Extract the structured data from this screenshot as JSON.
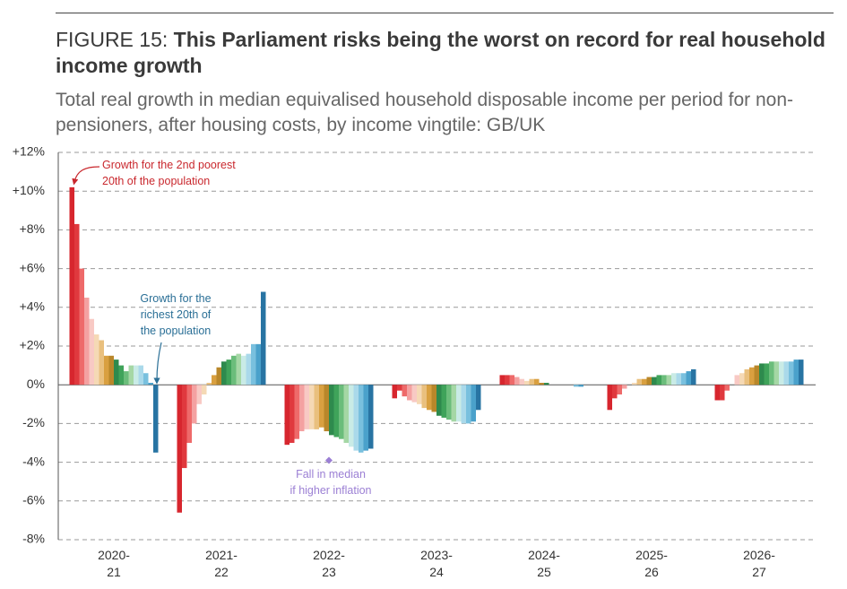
{
  "chart_data": {
    "type": "bar",
    "title_prefix": "FIGURE 15:",
    "title": "This Parliament risks being the worst on record for real household income growth",
    "subtitle": "Total real growth in median equivalised household disposable income per period for non-pensioners, after housing costs, by income vingtile: GB/UK",
    "categories": [
      [
        "2020-",
        "21"
      ],
      [
        "2021-",
        "22"
      ],
      [
        "2022-",
        "23"
      ],
      [
        "2023-",
        "24"
      ],
      [
        "2024-",
        "25"
      ],
      [
        "2025-",
        "26"
      ],
      [
        "2026-",
        "27"
      ]
    ],
    "ylim": [
      -8,
      12
    ],
    "yticks": [
      {
        "value": -8,
        "label": "-8%"
      },
      {
        "value": -6,
        "label": "-6%"
      },
      {
        "value": -4,
        "label": "-4%"
      },
      {
        "value": -2,
        "label": "-2%"
      },
      {
        "value": 0,
        "label": "0%"
      },
      {
        "value": 2,
        "label": "+2%"
      },
      {
        "value": 4,
        "label": "+4%"
      },
      {
        "value": 6,
        "label": "+6%"
      },
      {
        "value": 8,
        "label": "+8%"
      },
      {
        "value": 10,
        "label": "+10%"
      },
      {
        "value": 12,
        "label": "+12%"
      }
    ],
    "grid": true,
    "series": [
      {
        "color": "#d7262e",
        "values": [
          10.2,
          -6.6,
          -3.1,
          -0.7,
          0.5,
          -1.3,
          -0.8
        ]
      },
      {
        "color": "#e0393e",
        "values": [
          8.3,
          -4.3,
          -3.0,
          -0.3,
          0.5,
          -0.7,
          -0.8
        ]
      },
      {
        "color": "#ee6a6a",
        "values": [
          6.0,
          -3.0,
          -2.8,
          -0.6,
          0.5,
          -0.5,
          -0.3
        ]
      },
      {
        "color": "#f4a1a1",
        "values": [
          4.5,
          -2.0,
          -2.4,
          -0.8,
          0.4,
          -0.2,
          0.0
        ]
      },
      {
        "color": "#f8c9c4",
        "values": [
          3.4,
          -1.0,
          -2.3,
          -0.9,
          0.3,
          0.0,
          0.5
        ]
      },
      {
        "color": "#f5d9b5",
        "values": [
          2.6,
          -0.5,
          -2.3,
          -1.0,
          0.2,
          0.1,
          0.6
        ]
      },
      {
        "color": "#e9c07e",
        "values": [
          2.3,
          0.1,
          -2.3,
          -1.2,
          0.3,
          0.3,
          0.8
        ]
      },
      {
        "color": "#d9a040",
        "values": [
          1.5,
          0.5,
          -2.2,
          -1.3,
          0.3,
          0.3,
          0.9
        ]
      },
      {
        "color": "#b9872a",
        "values": [
          1.5,
          0.9,
          -2.4,
          -1.4,
          0.1,
          0.4,
          1.0
        ]
      },
      {
        "color": "#2e8a4d",
        "values": [
          1.3,
          1.2,
          -2.6,
          -1.6,
          0.1,
          0.4,
          1.1
        ]
      },
      {
        "color": "#3fa35a",
        "values": [
          1.0,
          1.3,
          -2.7,
          -1.7,
          0.0,
          0.5,
          1.1
        ]
      },
      {
        "color": "#6bbd7b",
        "values": [
          0.7,
          1.5,
          -2.8,
          -1.8,
          0.0,
          0.5,
          1.2
        ]
      },
      {
        "color": "#a5d7a5",
        "values": [
          1.0,
          1.6,
          -3.0,
          -1.9,
          0.0,
          0.5,
          1.2
        ]
      },
      {
        "color": "#c9ebe6",
        "values": [
          1.0,
          1.5,
          -3.2,
          -1.9,
          0.0,
          0.6,
          1.2
        ]
      },
      {
        "color": "#aad9ea",
        "values": [
          1.0,
          1.6,
          -3.4,
          -2.0,
          0.0,
          0.6,
          1.2
        ]
      },
      {
        "color": "#79c0de",
        "values": [
          0.6,
          2.1,
          -3.5,
          -2.0,
          -0.1,
          0.6,
          1.2
        ]
      },
      {
        "color": "#4aa1cb",
        "values": [
          0.1,
          2.1,
          -3.4,
          -1.9,
          -0.1,
          0.7,
          1.3
        ]
      },
      {
        "color": "#2874a3",
        "values": [
          -3.5,
          4.8,
          -3.3,
          -1.3,
          0.0,
          0.8,
          1.3
        ]
      },
      {
        "color": "#9b7fd4",
        "marker": "diamond",
        "values": [
          null,
          null,
          -3.9,
          null,
          null,
          null,
          null
        ]
      }
    ],
    "annotations": [
      {
        "lines": [
          "Growth for the 2nd poorest",
          "20th of the population"
        ],
        "color": "#c9282e"
      },
      {
        "lines": [
          "Growth for the",
          "richest 20th of",
          "the population"
        ],
        "color": "#2a6f96"
      },
      {
        "lines": [
          "Fall in median",
          "if higher inflation"
        ],
        "color": "#9b7fd4"
      }
    ]
  }
}
